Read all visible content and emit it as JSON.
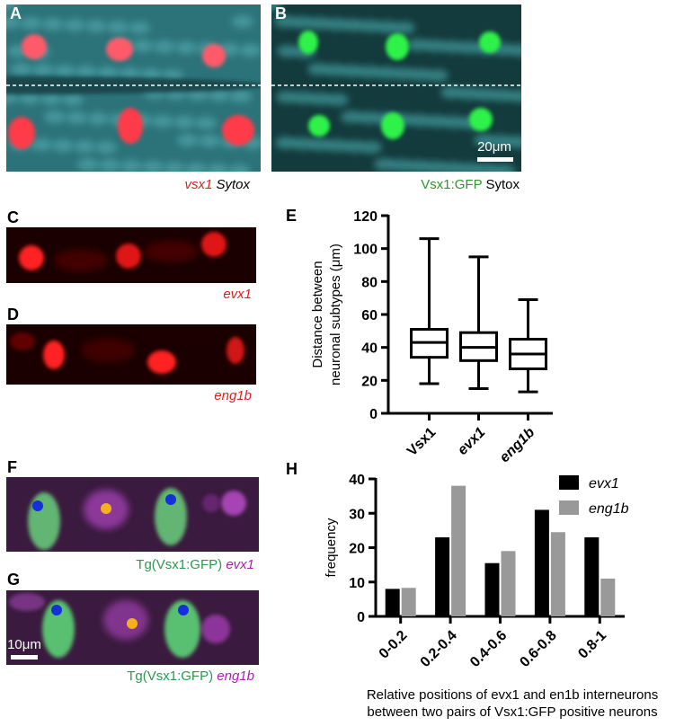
{
  "panels": {
    "A": {
      "label": "A",
      "caption": [
        "vsx1",
        "Sytox"
      ]
    },
    "B": {
      "label": "B",
      "caption": [
        "Vsx1:GFP",
        "Sytox"
      ],
      "scale_bar": "20μm"
    },
    "C": {
      "label": "C",
      "caption": "evx1"
    },
    "D": {
      "label": "D",
      "caption": "eng1b"
    },
    "E": {
      "label": "E"
    },
    "F": {
      "label": "F",
      "caption": [
        "Tg(Vsx1:GFP)",
        "evx1"
      ]
    },
    "G": {
      "label": "G",
      "caption": [
        "Tg(Vsx1:GFP)",
        "eng1b"
      ],
      "scale_bar": "10μm"
    },
    "H": {
      "label": "H"
    }
  },
  "chart_data": [
    {
      "type": "box",
      "y_label": [
        "Distance between",
        "neuronal subtypes (μm)"
      ],
      "categories": [
        "Vsx1",
        "evx1",
        "eng1b"
      ],
      "boxes": [
        {
          "min": 18,
          "q1": 34,
          "median": 43,
          "q3": 51,
          "max": 106
        },
        {
          "min": 15,
          "q1": 32,
          "median": 40,
          "q3": 49,
          "max": 95
        },
        {
          "min": 13,
          "q1": 27,
          "median": 36,
          "q3": 45,
          "max": 69
        }
      ],
      "color": "#000000",
      "ylim": [
        0,
        120
      ],
      "yticks": [
        0,
        20,
        40,
        60,
        80,
        100,
        120
      ]
    },
    {
      "type": "bar",
      "y_label": "frequency",
      "x_label": [
        "Relative positions of evx1 and en1b interneurons",
        "between two pairs of Vsx1:GFP positive neurons"
      ],
      "categories": [
        "0-0.2",
        "0.2-0.4",
        "0.4-0.6",
        "0.6-0.8",
        "0.8-1"
      ],
      "series": [
        {
          "name": "evx1",
          "color": "#000000",
          "values": [
            8,
            23,
            15.5,
            31,
            23
          ]
        },
        {
          "name": "eng1b",
          "color": "#999999",
          "values": [
            8.3,
            38,
            19,
            24.5,
            11
          ]
        }
      ],
      "ylim": [
        0,
        40
      ],
      "yticks": [
        0,
        10,
        20,
        30,
        40
      ],
      "legend": "upper right"
    }
  ]
}
